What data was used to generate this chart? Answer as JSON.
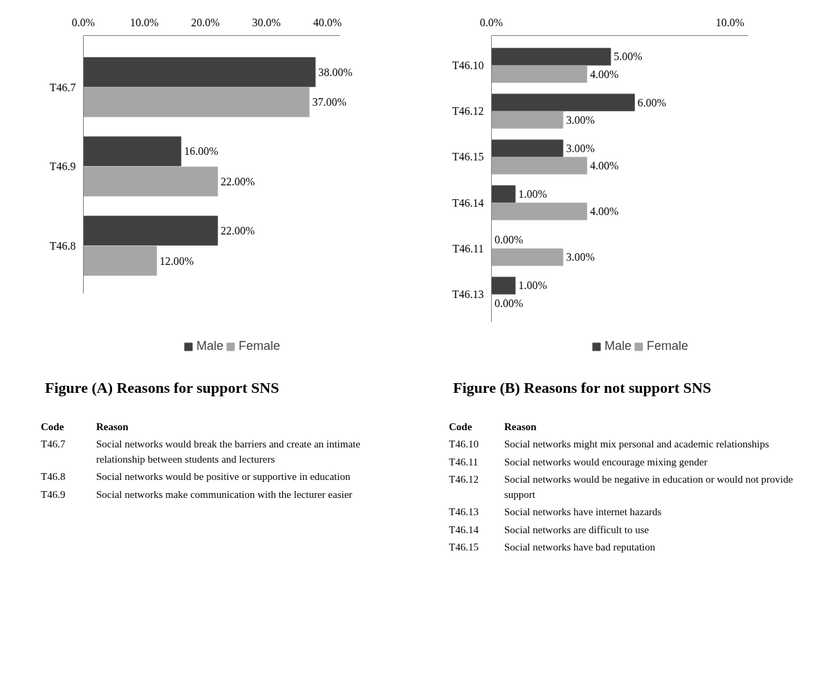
{
  "chart_data": [
    {
      "type": "bar",
      "orientation": "horizontal",
      "title": "Figure (A) Reasons for support SNS",
      "categories": [
        "T46.7",
        "T46.9",
        "T46.8"
      ],
      "series": [
        {
          "name": "Male",
          "color": "#404040",
          "values": [
            38,
            16,
            22
          ],
          "value_labels": [
            "38.00%",
            "16.00%",
            "22.00%"
          ]
        },
        {
          "name": "Female",
          "color": "#a6a6a6",
          "values": [
            37,
            22,
            12
          ],
          "value_labels": [
            "37.00%",
            "22.00%",
            "12.00%"
          ]
        }
      ],
      "xlim": [
        0,
        42
      ],
      "xticks": [
        {
          "value": 0,
          "label": "0.0%"
        },
        {
          "value": 10,
          "label": "10.0%"
        },
        {
          "value": 20,
          "label": "20.0%"
        },
        {
          "value": 30,
          "label": "30.0%"
        },
        {
          "value": 40,
          "label": "40.0%"
        }
      ],
      "legend": "bottom",
      "grid": false,
      "annotations": [
        "Code",
        "Reason",
        "T46.7",
        "Social networks would break the barriers and create an intimate relationship between students and lecturers",
        "T46.8",
        "Social networks would be positive or supportive in education",
        "T46.9",
        "Social networks make communication with the lecturer easier"
      ]
    },
    {
      "type": "bar",
      "orientation": "horizontal",
      "title": "Figure (B) Reasons for not support SNS",
      "categories": [
        "T46.10",
        "T46.12",
        "T46.15",
        "T46.14",
        "T46.11",
        "T46.13"
      ],
      "series": [
        {
          "name": "Male",
          "color": "#404040",
          "values": [
            5,
            6,
            3,
            1,
            0,
            1
          ],
          "value_labels": [
            "5.00%",
            "6.00%",
            "3.00%",
            "1.00%",
            "0.00%",
            "1.00%"
          ]
        },
        {
          "name": "Female",
          "color": "#a6a6a6",
          "values": [
            4,
            3,
            4,
            4,
            3,
            0
          ],
          "value_labels": [
            "4.00%",
            "3.00%",
            "4.00%",
            "4.00%",
            "3.00%",
            "0.00%"
          ]
        }
      ],
      "xlim": [
        0,
        10.75
      ],
      "xticks": [
        {
          "value": 0,
          "label": "0.0%"
        },
        {
          "value": 10,
          "label": "10.0%"
        }
      ],
      "legend": "bottom",
      "grid": false,
      "annotations": [
        "Code",
        "Reason",
        "T46.10",
        "Social networks might mix personal and academic relationships",
        "T46.11",
        "Social networks would encourage mixing gender",
        "T46.12",
        "Social networks would be negative in education or would not provide support",
        "T46.13",
        "Social networks have internet hazards",
        "T46.14",
        "Social networks are difficult to use",
        "T46.15",
        "Social networks have bad reputation"
      ]
    }
  ]
}
